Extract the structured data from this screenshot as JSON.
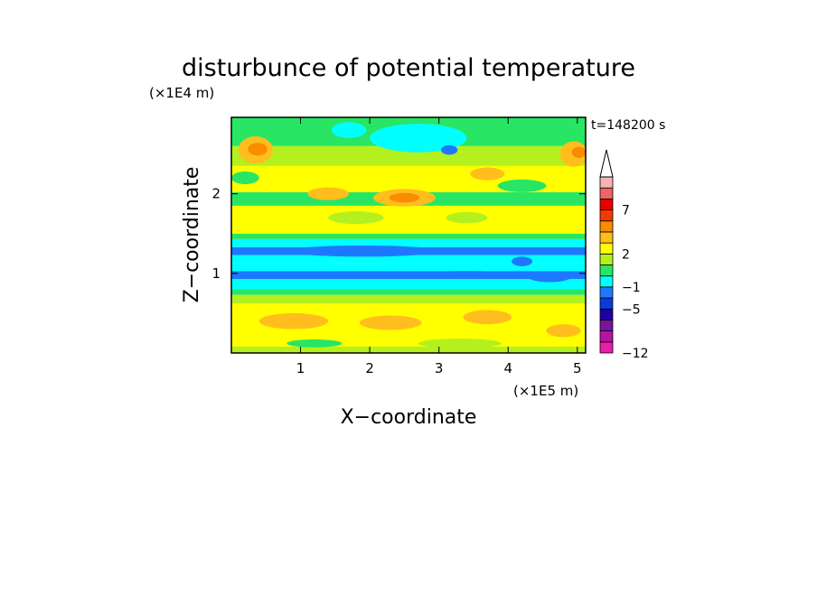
{
  "chart_data": {
    "type": "heatmap",
    "title": "disturbunce of potential temperature",
    "xlabel": "X−coordinate",
    "ylabel": "Z−coordinate",
    "x_unit": "(×1E5 m)",
    "y_unit": "(×1E4 m)",
    "time_stamp": "t=148200 s",
    "xlim": [
      0,
      5.12
    ],
    "ylim": [
      0,
      2.96
    ],
    "x_ticks": [
      "1",
      "2",
      "3",
      "4",
      "5"
    ],
    "y_ticks": [
      "1",
      "2"
    ],
    "grid": false,
    "legend": "right",
    "colorbar": {
      "labels": [
        "7",
        "2",
        "−1",
        "−5",
        "−12"
      ],
      "levels": [
        -12,
        -10,
        -8,
        -6,
        -5,
        -3,
        -1,
        0,
        1,
        2,
        3,
        5,
        7,
        9,
        11
      ],
      "colors": [
        "#e81eaa",
        "#b414a0",
        "#7814a0",
        "#1e00a0",
        "#0a3cdc",
        "#1e78ff",
        "#00ffff",
        "#28e664",
        "#b4f01e",
        "#ffff00",
        "#ffbe1e",
        "#fa8c00",
        "#f03c00",
        "#e60000",
        "#f06464",
        "#f5b4b4"
      ],
      "extend_top": "triangle"
    },
    "bands": [
      {
        "z": [
          0.0,
          0.08
        ],
        "color": "#b4f01e"
      },
      {
        "z": [
          0.08,
          0.62
        ],
        "color": "#ffff00"
      },
      {
        "z": [
          0.62,
          0.73
        ],
        "color": "#b4f01e"
      },
      {
        "z": [
          0.73,
          0.8
        ],
        "color": "#28e664"
      },
      {
        "z": [
          0.8,
          0.93
        ],
        "color": "#00ffff"
      },
      {
        "z": [
          0.93,
          1.03
        ],
        "color": "#1e78ff"
      },
      {
        "z": [
          1.03,
          1.13
        ],
        "color": "#00ffff"
      },
      {
        "z": [
          1.13,
          1.23
        ],
        "color": "#00ffff"
      },
      {
        "z": [
          1.23,
          1.33
        ],
        "color": "#1e78ff"
      },
      {
        "z": [
          1.33,
          1.43
        ],
        "color": "#00ffff"
      },
      {
        "z": [
          1.43,
          1.5
        ],
        "color": "#28e664"
      },
      {
        "z": [
          1.5,
          1.85
        ],
        "color": "#ffff00"
      },
      {
        "z": [
          1.85,
          2.02
        ],
        "color": "#28e664"
      },
      {
        "z": [
          2.02,
          2.35
        ],
        "color": "#ffff00"
      },
      {
        "z": [
          2.35,
          2.6
        ],
        "color": "#b4f01e"
      },
      {
        "z": [
          2.6,
          2.96
        ],
        "color": "#28e664"
      }
    ],
    "blobs": [
      {
        "x": 0.35,
        "z": 2.55,
        "rx": 0.25,
        "rz": 0.17,
        "color": "#ffbe1e"
      },
      {
        "x": 0.38,
        "z": 2.56,
        "rx": 0.14,
        "rz": 0.08,
        "color": "#fa8c00"
      },
      {
        "x": 4.95,
        "z": 2.5,
        "rx": 0.2,
        "rz": 0.16,
        "color": "#ffbe1e"
      },
      {
        "x": 5.02,
        "z": 2.52,
        "rx": 0.1,
        "rz": 0.07,
        "color": "#fa8c00"
      },
      {
        "x": 2.7,
        "z": 2.7,
        "rx": 0.7,
        "rz": 0.18,
        "color": "#00ffff"
      },
      {
        "x": 1.7,
        "z": 2.8,
        "rx": 0.25,
        "rz": 0.1,
        "color": "#00ffff"
      },
      {
        "x": 3.15,
        "z": 2.55,
        "rx": 0.12,
        "rz": 0.06,
        "color": "#1e78ff"
      },
      {
        "x": 2.5,
        "z": 1.95,
        "rx": 0.45,
        "rz": 0.11,
        "color": "#ffbe1e"
      },
      {
        "x": 2.5,
        "z": 1.95,
        "rx": 0.22,
        "rz": 0.06,
        "color": "#fa8c00"
      },
      {
        "x": 1.4,
        "z": 2.0,
        "rx": 0.3,
        "rz": 0.08,
        "color": "#ffbe1e"
      },
      {
        "x": 3.7,
        "z": 2.25,
        "rx": 0.25,
        "rz": 0.08,
        "color": "#ffbe1e"
      },
      {
        "x": 1.9,
        "z": 1.28,
        "rx": 1.1,
        "rz": 0.07,
        "color": "#1e78ff"
      },
      {
        "x": 4.2,
        "z": 1.15,
        "rx": 0.15,
        "rz": 0.06,
        "color": "#1e78ff"
      },
      {
        "x": 4.6,
        "z": 0.95,
        "rx": 0.3,
        "rz": 0.06,
        "color": "#1e78ff"
      },
      {
        "x": 3.4,
        "z": 0.98,
        "rx": 0.8,
        "rz": 0.05,
        "color": "#1e78ff"
      },
      {
        "x": 0.2,
        "z": 2.2,
        "rx": 0.2,
        "rz": 0.08,
        "color": "#28e664"
      },
      {
        "x": 4.2,
        "z": 2.1,
        "rx": 0.35,
        "rz": 0.08,
        "color": "#28e664"
      },
      {
        "x": 1.8,
        "z": 1.7,
        "rx": 0.4,
        "rz": 0.08,
        "color": "#b4f01e"
      },
      {
        "x": 3.4,
        "z": 1.7,
        "rx": 0.3,
        "rz": 0.07,
        "color": "#b4f01e"
      },
      {
        "x": 0.9,
        "z": 0.4,
        "rx": 0.5,
        "rz": 0.1,
        "color": "#ffbe1e"
      },
      {
        "x": 2.3,
        "z": 0.38,
        "rx": 0.45,
        "rz": 0.09,
        "color": "#ffbe1e"
      },
      {
        "x": 3.7,
        "z": 0.45,
        "rx": 0.35,
        "rz": 0.09,
        "color": "#ffbe1e"
      },
      {
        "x": 4.8,
        "z": 0.28,
        "rx": 0.25,
        "rz": 0.08,
        "color": "#ffbe1e"
      },
      {
        "x": 3.3,
        "z": 0.12,
        "rx": 0.6,
        "rz": 0.06,
        "color": "#b4f01e"
      },
      {
        "x": 1.2,
        "z": 0.12,
        "rx": 0.4,
        "rz": 0.05,
        "color": "#28e664"
      }
    ]
  }
}
